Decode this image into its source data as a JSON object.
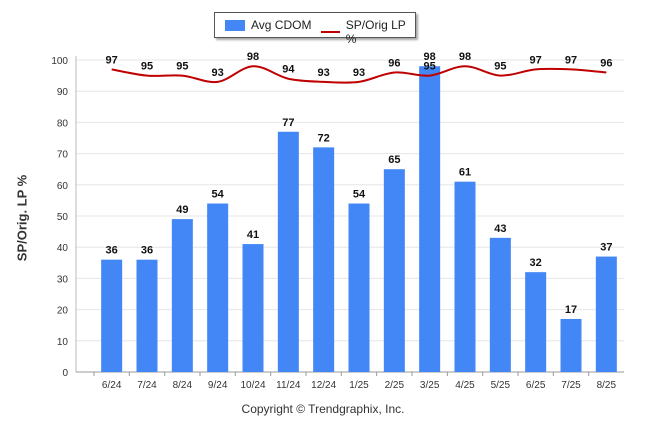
{
  "legend": {
    "bar_label": "Avg CDOM",
    "line_label": "SP/Orig LP %"
  },
  "footer": {
    "copyright": "Copyright © Trendgraphix, Inc."
  },
  "chart_data": {
    "type": "bar",
    "categories": [
      "6/24",
      "7/24",
      "8/24",
      "9/24",
      "10/24",
      "11/24",
      "12/24",
      "1/25",
      "2/25",
      "3/25",
      "4/25",
      "5/25",
      "6/25",
      "7/25",
      "8/25"
    ],
    "series": [
      {
        "name": "Avg CDOM",
        "type": "bar",
        "color": "#4287f5",
        "values": [
          36,
          36,
          49,
          54,
          41,
          77,
          72,
          54,
          65,
          98,
          61,
          43,
          32,
          17,
          37
        ]
      },
      {
        "name": "SP/Orig LP %",
        "type": "line",
        "color": "#c00000",
        "values": [
          97,
          95,
          95,
          93,
          98,
          94,
          93,
          93,
          96,
          95,
          98,
          95,
          97,
          97,
          96
        ]
      }
    ],
    "ylabel": "SP/Orig. LP %",
    "ylim": [
      0,
      100
    ],
    "yticks": [
      0,
      10,
      20,
      30,
      40,
      50,
      60,
      70,
      80,
      90,
      100
    ],
    "grid": true,
    "legend_position": "top-center"
  }
}
